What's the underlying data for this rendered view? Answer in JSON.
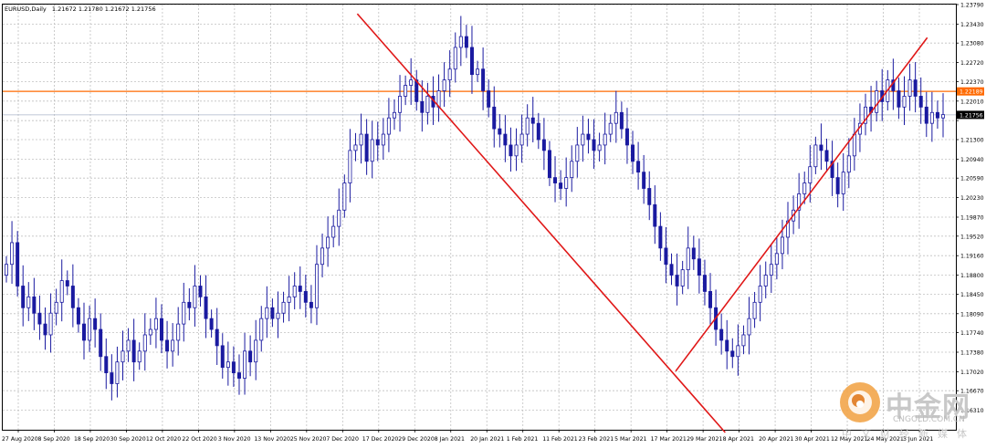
{
  "header": {
    "symbol": "EURUSD,Daily",
    "quote": "1.21672 1.21780 1.21672 1.21756"
  },
  "watermark": {
    "brand": "中金网",
    "url": "CNGOLD.COM.CN",
    "tagline": "中文财经新媒体"
  },
  "colors": {
    "background": "#ffffff",
    "grid": "#c0c0c0",
    "bull_candle": "#2e8b57",
    "bear_candle": "#1a1aa0",
    "trend_lines": "#e01818",
    "resistance_line": "#ff6a00",
    "current_price_line": "#a9b4c8"
  },
  "chart_data": {
    "type": "candlestick",
    "symbol": "EURUSD",
    "timeframe": "Daily",
    "last_bar": {
      "open": 1.21672,
      "high": 1.2178,
      "low": 1.21672,
      "close": 1.21756
    },
    "ylim": [
      1.1595,
      1.2379
    ],
    "y_ticks": [
      1.2379,
      1.2343,
      1.2308,
      1.2272,
      1.2237,
      1.2201,
      1.2165,
      1.213,
      1.2094,
      1.2059,
      1.2023,
      1.1987,
      1.1952,
      1.1916,
      1.188,
      1.1845,
      1.1809,
      1.1774,
      1.1738,
      1.1702,
      1.1667,
      1.1631
    ],
    "y_tick_labels": [
      "1.23790",
      "1.23430",
      "1.23080",
      "1.22720",
      "1.22370",
      "1.22010",
      "",
      "1.21300",
      "1.20940",
      "1.20590",
      "1.20230",
      "1.19870",
      "1.19520",
      "1.19160",
      "1.18800",
      "1.18450",
      "1.18090",
      "1.17740",
      "1.17380",
      "1.17020",
      "1.16670",
      "1.16310"
    ],
    "x_labels": [
      "27 Aug 2020",
      "8 Sep 2020",
      "18 Sep 2020",
      "30 Sep 2020",
      "12 Oct 2020",
      "22 Oct 2020",
      "3 Nov 2020",
      "13 Nov 2020",
      "25 Nov 2020",
      "7 Dec 2020",
      "17 Dec 2020",
      "29 Dec 2020",
      "8 Jan 2021",
      "20 Jan 2021",
      "1 Feb 2021",
      "11 Feb 2021",
      "23 Feb 2021",
      "5 Mar 2021",
      "17 Mar 2021",
      "29 Mar 2021",
      "8 Apr 2021",
      "20 Apr 2021",
      "30 Apr 2021",
      "12 May 2021",
      "24 May 2021",
      "3 Jun 2021"
    ],
    "price_labels": [
      {
        "value": 1.22189,
        "text": "1.22189",
        "kind": "resistance"
      },
      {
        "value": 1.21756,
        "text": "1.21756",
        "kind": "current"
      }
    ],
    "trend_lines": [
      {
        "name": "downtrend",
        "from": {
          "bar": 0.372,
          "price": 1.2362
        },
        "to": {
          "bar": 0.758,
          "price": 1.159
        }
      },
      {
        "name": "uptrend",
        "from": {
          "bar": 0.706,
          "price": 1.1703
        },
        "to": {
          "bar": 0.97,
          "price": 1.2318
        }
      }
    ],
    "horizontal_lines": [
      {
        "price": 1.22189,
        "kind": "resistance"
      },
      {
        "price": 1.21756,
        "kind": "current"
      }
    ],
    "closes": [
      1.19,
      1.194,
      1.186,
      1.182,
      1.184,
      1.181,
      1.179,
      1.177,
      1.181,
      1.183,
      1.187,
      1.186,
      1.182,
      1.179,
      1.176,
      1.18,
      1.178,
      1.173,
      1.17,
      1.168,
      1.172,
      1.174,
      1.176,
      1.172,
      1.174,
      1.177,
      1.178,
      1.18,
      1.176,
      1.174,
      1.176,
      1.179,
      1.183,
      1.182,
      1.186,
      1.184,
      1.18,
      1.178,
      1.175,
      1.171,
      1.172,
      1.17,
      1.169,
      1.174,
      1.172,
      1.176,
      1.18,
      1.182,
      1.18,
      1.181,
      1.183,
      1.184,
      1.186,
      1.185,
      1.183,
      1.182,
      1.19,
      1.193,
      1.195,
      1.197,
      1.2,
      1.205,
      1.211,
      1.212,
      1.214,
      1.209,
      1.213,
      1.212,
      1.214,
      1.217,
      1.218,
      1.221,
      1.223,
      1.224,
      1.22,
      1.218,
      1.221,
      1.219,
      1.222,
      1.224,
      1.226,
      1.23,
      1.232,
      1.23,
      1.225,
      1.226,
      1.222,
      1.219,
      1.215,
      1.214,
      1.212,
      1.21,
      1.212,
      1.214,
      1.217,
      1.216,
      1.213,
      1.211,
      1.206,
      1.205,
      1.204,
      1.206,
      1.209,
      1.212,
      1.214,
      1.213,
      1.211,
      1.212,
      1.214,
      1.216,
      1.218,
      1.215,
      1.212,
      1.209,
      1.207,
      1.204,
      1.201,
      1.197,
      1.193,
      1.19,
      1.188,
      1.186,
      1.189,
      1.193,
      1.191,
      1.188,
      1.185,
      1.182,
      1.178,
      1.176,
      1.174,
      1.173,
      1.175,
      1.177,
      1.18,
      1.183,
      1.186,
      1.188,
      1.19,
      1.192,
      1.195,
      1.198,
      1.2,
      1.203,
      1.205,
      1.208,
      1.212,
      1.211,
      1.209,
      1.206,
      1.203,
      1.207,
      1.21,
      1.214,
      1.216,
      1.219,
      1.218,
      1.222,
      1.22,
      1.224,
      1.222,
      1.219,
      1.221,
      1.224,
      1.221,
      1.219,
      1.216,
      1.218,
      1.217,
      1.2176
    ]
  }
}
